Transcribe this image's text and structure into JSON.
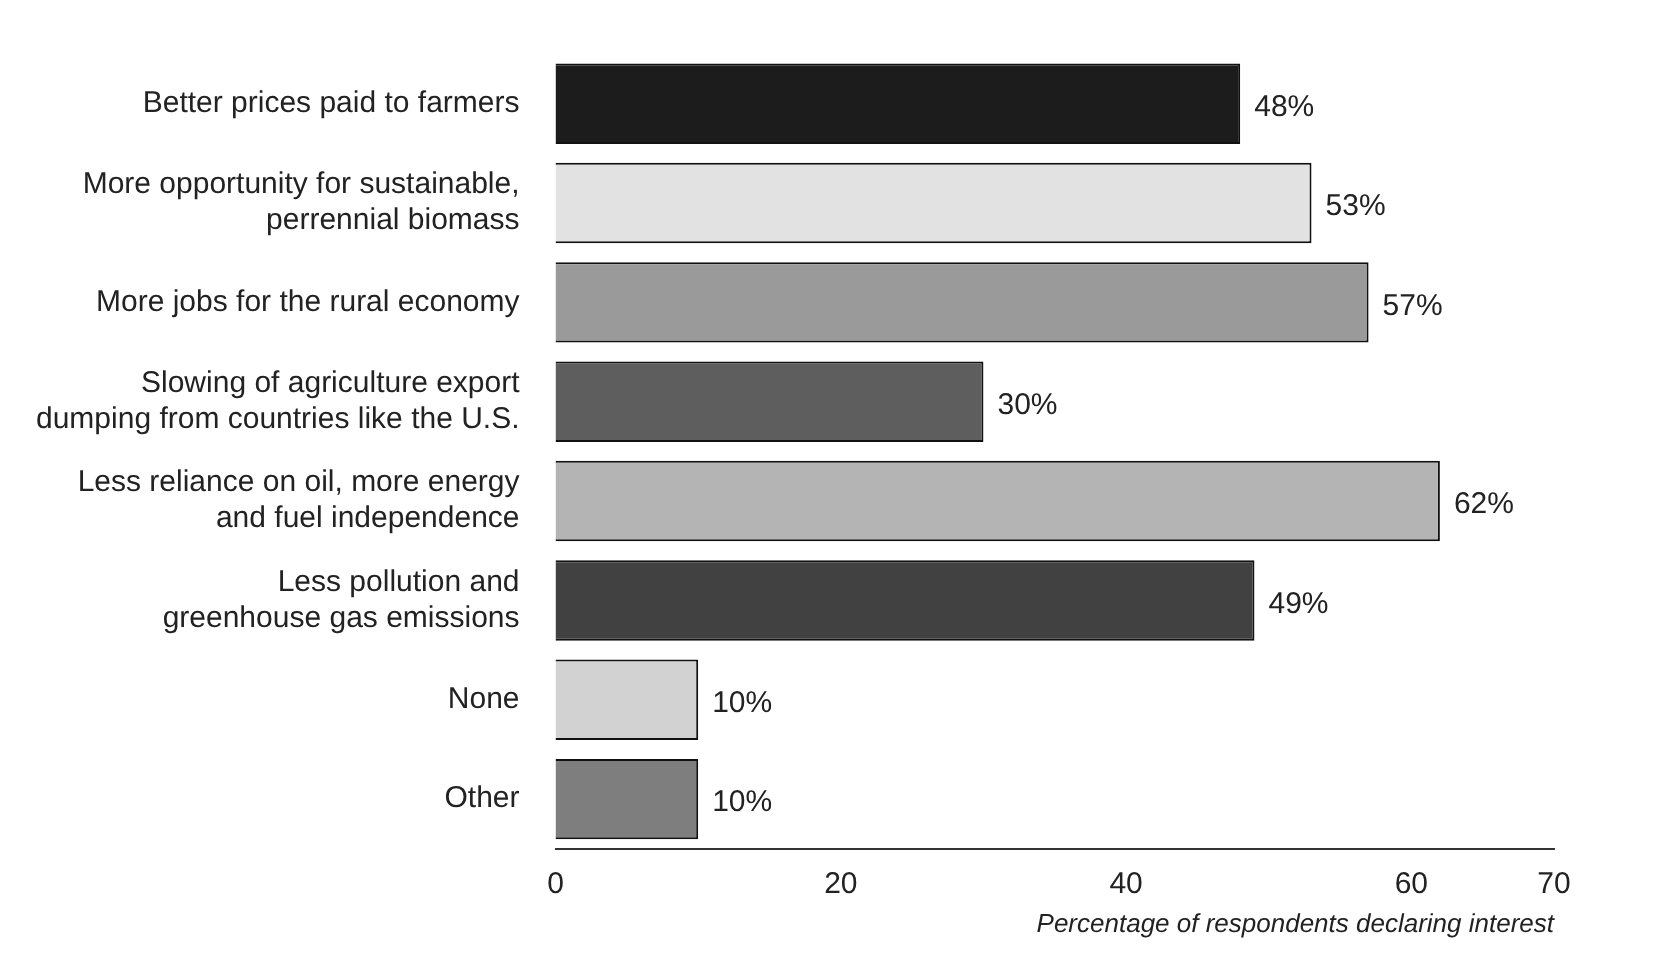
{
  "chart_data": {
    "type": "bar",
    "orientation": "horizontal",
    "xlabel": "Percentage of respondents declaring interest",
    "categories": [
      "Better prices paid to farmers",
      "More opportunity for sustainable,\nperrennial biomass",
      "More jobs for the rural economy",
      "Slowing of agriculture export\ndumping from countries like the U.S.",
      "Less reliance on oil, more energy\nand fuel independence",
      "Less pollution and\ngreenhouse gas emissions",
      "None",
      "Other"
    ],
    "values": [
      48,
      53,
      57,
      30,
      62,
      49,
      10,
      10
    ],
    "value_labels": [
      "48%",
      "53%",
      "57%",
      "30%",
      "62%",
      "49%",
      "10%",
      "10%"
    ],
    "colors": [
      "#1c1c1c",
      "#e2e2e2",
      "#9a9a9a",
      "#5e5e5e",
      "#b4b4b4",
      "#414141",
      "#d2d2d2",
      "#7e7e7e"
    ],
    "xlim": [
      0,
      70
    ],
    "xticks": [
      0,
      20,
      40,
      60,
      70
    ],
    "grid": false,
    "legend": false
  }
}
